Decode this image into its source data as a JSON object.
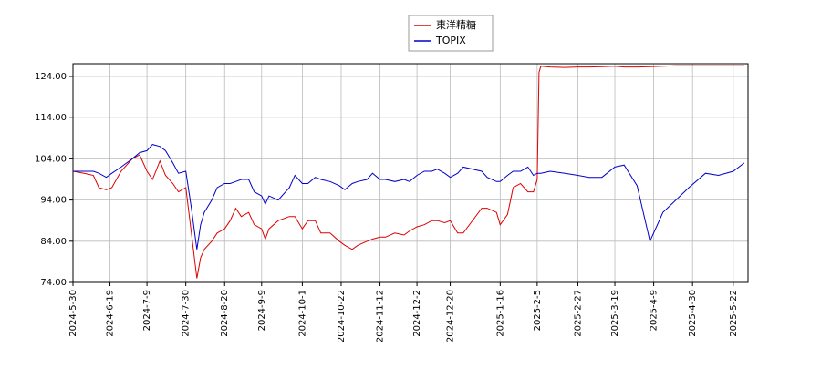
{
  "chart_data": {
    "type": "line",
    "x": [
      "2024-05-30",
      "2024-06-05",
      "2024-06-10",
      "2024-06-13",
      "2024-06-17",
      "2024-06-20",
      "2024-06-25",
      "2024-07-01",
      "2024-07-05",
      "2024-07-09",
      "2024-07-12",
      "2024-07-16",
      "2024-07-19",
      "2024-07-23",
      "2024-07-26",
      "2024-07-30",
      "2024-08-02",
      "2024-08-05",
      "2024-08-07",
      "2024-08-09",
      "2024-08-13",
      "2024-08-16",
      "2024-08-20",
      "2024-08-23",
      "2024-08-26",
      "2024-08-29",
      "2024-09-02",
      "2024-09-05",
      "2024-09-09",
      "2024-09-11",
      "2024-09-13",
      "2024-09-18",
      "2024-09-24",
      "2024-09-27",
      "2024-10-01",
      "2024-10-04",
      "2024-10-08",
      "2024-10-11",
      "2024-10-16",
      "2024-10-21",
      "2024-10-24",
      "2024-10-28",
      "2024-10-31",
      "2024-11-05",
      "2024-11-08",
      "2024-11-12",
      "2024-11-15",
      "2024-11-20",
      "2024-11-25",
      "2024-11-28",
      "2024-12-02",
      "2024-12-06",
      "2024-12-10",
      "2024-12-13",
      "2024-12-17",
      "2024-12-20",
      "2024-12-24",
      "2024-12-27",
      "2025-01-06",
      "2025-01-09",
      "2025-01-14",
      "2025-01-16",
      "2025-01-20",
      "2025-01-23",
      "2025-01-27",
      "2025-01-31",
      "2025-02-03",
      "2025-02-05",
      "2025-02-06",
      "2025-02-07",
      "2025-02-12",
      "2025-02-20",
      "2025-02-27",
      "2025-03-05",
      "2025-03-12",
      "2025-03-19",
      "2025-03-24",
      "2025-03-31",
      "2025-04-07",
      "2025-04-14",
      "2025-04-21",
      "2025-04-28",
      "2025-05-07",
      "2025-05-14",
      "2025-05-22",
      "2025-05-28"
    ],
    "series": [
      {
        "name": "東洋精糖",
        "color": "#dd0000",
        "values": [
          101,
          100.5,
          100,
          97,
          96.5,
          97,
          101,
          104,
          105,
          101,
          99,
          103.5,
          100,
          98,
          96,
          97,
          86,
          75,
          80,
          82,
          84,
          86,
          87,
          89,
          92,
          90,
          91,
          88,
          87,
          84.5,
          87,
          89,
          90,
          90,
          87,
          89,
          89,
          86,
          86,
          84,
          83,
          82,
          83,
          84,
          84.5,
          85,
          85,
          86,
          85.5,
          86.5,
          87.5,
          88,
          89,
          89,
          88.5,
          89,
          86,
          86,
          92,
          92,
          91,
          88,
          90.5,
          97,
          98,
          96,
          96,
          99,
          125,
          126.5,
          126.3,
          126.2,
          126.3,
          126.3,
          126.4,
          126.5,
          126.3,
          126.3,
          126.4,
          126.5,
          126.6,
          126.6,
          126.6,
          126.6,
          126.6,
          126.6
        ]
      },
      {
        "name": "TOPIX",
        "color": "#0000cc",
        "values": [
          101,
          101,
          101,
          100.5,
          99.5,
          100.5,
          102,
          104,
          105.5,
          106,
          107.5,
          107,
          106,
          103,
          100.5,
          101,
          92,
          82,
          88,
          91,
          94,
          97,
          98,
          98,
          98.5,
          99,
          99,
          96,
          95,
          93,
          95,
          94,
          97,
          100,
          98,
          98,
          99.5,
          99,
          98.5,
          97.5,
          96.5,
          98,
          98.5,
          99,
          100.5,
          99,
          99,
          98.5,
          99,
          98.5,
          100,
          101,
          101,
          101.5,
          100.5,
          99.5,
          100.5,
          102,
          101,
          99.5,
          98.5,
          98.5,
          100,
          101,
          101,
          102,
          100,
          100.5,
          100.5,
          100.5,
          101,
          100.5,
          100,
          99.5,
          99.5,
          102,
          102.5,
          97.5,
          84,
          91,
          94,
          97,
          100.5,
          100,
          101,
          103
        ]
      }
    ],
    "xlim": [
      "2024-05-30",
      "2025-05-30"
    ],
    "xticks": [
      {
        "value": "2024-05-30",
        "label": "2024-5-30"
      },
      {
        "value": "2024-06-19",
        "label": "2024-6-19"
      },
      {
        "value": "2024-07-09",
        "label": "2024-7-9"
      },
      {
        "value": "2024-07-30",
        "label": "2024-7-30"
      },
      {
        "value": "2024-08-20",
        "label": "2024-8-20"
      },
      {
        "value": "2024-09-09",
        "label": "2024-9-9"
      },
      {
        "value": "2024-10-01",
        "label": "2024-10-1"
      },
      {
        "value": "2024-10-22",
        "label": "2024-10-22"
      },
      {
        "value": "2024-11-12",
        "label": "2024-11-12"
      },
      {
        "value": "2024-12-02",
        "label": "2024-12-2"
      },
      {
        "value": "2024-12-20",
        "label": "2024-12-20"
      },
      {
        "value": "2025-01-16",
        "label": "2025-1-16"
      },
      {
        "value": "2025-02-05",
        "label": "2025-2-5"
      },
      {
        "value": "2025-02-27",
        "label": "2025-2-27"
      },
      {
        "value": "2025-03-19",
        "label": "2025-3-19"
      },
      {
        "value": "2025-04-09",
        "label": "2025-4-9"
      },
      {
        "value": "2025-04-30",
        "label": "2025-4-30"
      },
      {
        "value": "2025-05-22",
        "label": "2025-5-22"
      }
    ],
    "ylim": [
      74,
      127.1
    ],
    "yticks": [
      {
        "value": 74,
        "label": "74.00"
      },
      {
        "value": 84,
        "label": "84.00"
      },
      {
        "value": 94,
        "label": "94.00"
      },
      {
        "value": 104,
        "label": "104.00"
      },
      {
        "value": 114,
        "label": "114.00"
      },
      {
        "value": 124,
        "label": "124.00"
      }
    ],
    "grid": true,
    "legend": "top"
  }
}
